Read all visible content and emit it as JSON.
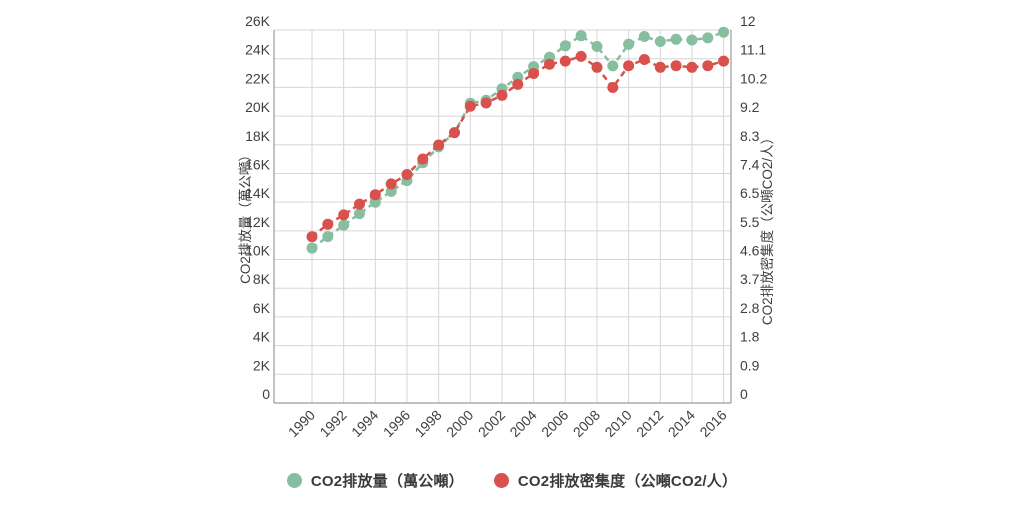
{
  "chart_data": {
    "type": "line",
    "title": "",
    "line_style": "dashed-with-round-markers",
    "grid": true,
    "x": [
      1990,
      1991,
      1992,
      1993,
      1994,
      1995,
      1996,
      1997,
      1998,
      1999,
      2000,
      2001,
      2002,
      2003,
      2004,
      2005,
      2006,
      2007,
      2008,
      2009,
      2010,
      2011,
      2012,
      2013,
      2014,
      2015,
      2016
    ],
    "series": [
      {
        "name": "CO2排放量（萬公噸）",
        "axis": "left",
        "color": "#86BE9F",
        "values": [
          10800,
          11600,
          12400,
          13200,
          14000,
          14750,
          15500,
          16750,
          17850,
          18850,
          20900,
          21100,
          21900,
          22700,
          23450,
          24100,
          24900,
          25600,
          24850,
          23500,
          25000,
          25550,
          25200,
          25350,
          25300,
          25450,
          25850
        ]
      },
      {
        "name": "CO2排放密集度（公噸CO2/人）",
        "axis": "right",
        "color": "#D9514D",
        "values": [
          5.35,
          5.75,
          6.05,
          6.4,
          6.7,
          7.05,
          7.35,
          7.85,
          8.3,
          8.7,
          9.55,
          9.65,
          9.9,
          10.25,
          10.6,
          10.9,
          11.0,
          11.15,
          10.8,
          10.15,
          10.85,
          11.05,
          10.8,
          10.85,
          10.8,
          10.85,
          11.0
        ]
      }
    ],
    "x_axis": {
      "tick_labels": [
        "1990",
        "1992",
        "1994",
        "1996",
        "1998",
        "2000",
        "2002",
        "2004",
        "2006",
        "2008",
        "2010",
        "2012",
        "2014",
        "2016"
      ],
      "tick_rotation_deg": -45
    },
    "left_axis": {
      "title": "CO2排放量（萬公噸）",
      "min": 0,
      "max": 26000,
      "tick_labels": [
        "0",
        "2K",
        "4K",
        "6K",
        "8K",
        "10K",
        "12K",
        "14K",
        "16K",
        "18K",
        "20K",
        "22K",
        "24K",
        "26K"
      ]
    },
    "right_axis": {
      "title": "CO2排放密集度（公噸CO2/人）",
      "min": 0,
      "max": 12,
      "tick_labels": [
        "0",
        "0.9",
        "1.8",
        "2.8",
        "3.7",
        "4.6",
        "5.5",
        "6.5",
        "7.4",
        "8.3",
        "9.2",
        "10.2",
        "11.1",
        "12"
      ]
    },
    "legend": {
      "position": "bottom-center",
      "items": [
        {
          "label": "CO2排放量（萬公噸）",
          "color": "#86BE9F"
        },
        {
          "label": "CO2排放密集度（公噸CO2/人）",
          "color": "#D9514D"
        }
      ]
    },
    "colors": {
      "grid": "#d6d6d6",
      "axis_line": "#9a9a9a",
      "tick_text": "#3f3f3f",
      "axis_title_text": "#3f3f3f",
      "background": "#ffffff"
    }
  }
}
